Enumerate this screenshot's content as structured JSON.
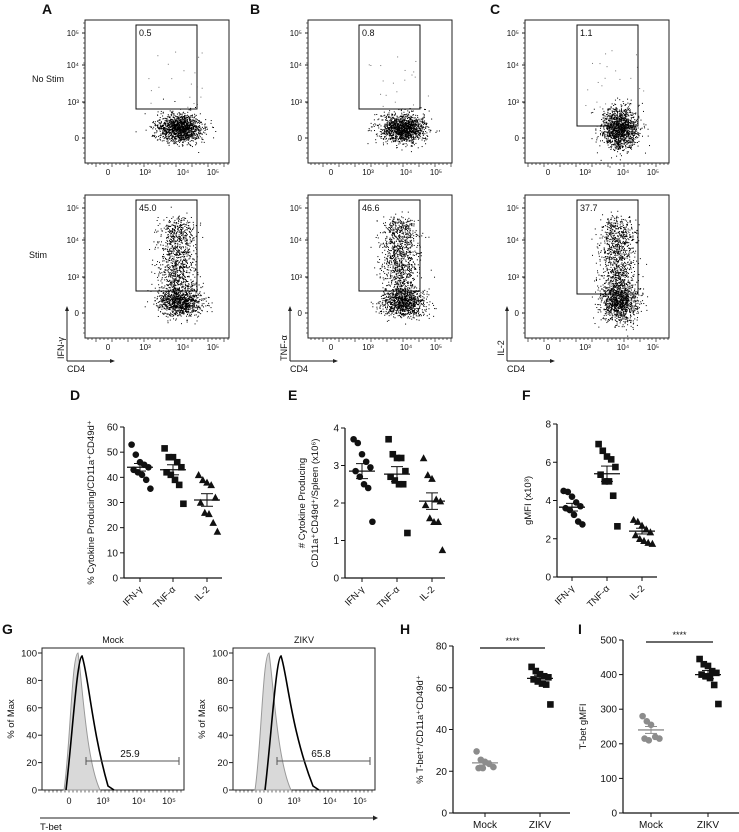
{
  "panels": {
    "A": {
      "letter": "A",
      "gate_no_stim": "0.5",
      "gate_stim": "45.0",
      "y_axis": "IFN-γ",
      "x_axis": "CD4"
    },
    "B": {
      "letter": "B",
      "gate_no_stim": "0.8",
      "gate_stim": "46.6",
      "y_axis": "TNF-α",
      "x_axis": "CD4"
    },
    "C": {
      "letter": "C",
      "gate_no_stim": "1.1",
      "gate_stim": "37.7",
      "y_axis": "IL-2",
      "x_axis": "CD4"
    },
    "D": {
      "letter": "D"
    },
    "E": {
      "letter": "E"
    },
    "F": {
      "letter": "F"
    },
    "G": {
      "letter": "G"
    },
    "H": {
      "letter": "H"
    },
    "I": {
      "letter": "I"
    }
  },
  "row_labels": {
    "no_stim": "No Stim",
    "stim": "Stim"
  },
  "flow_ticks": {
    "y": [
      "10⁵",
      "10⁴",
      "10³",
      "0"
    ],
    "x": [
      "0",
      "10³",
      "10⁴",
      "10⁵"
    ]
  },
  "histogram": {
    "titles": [
      "Mock",
      "ZIKV"
    ],
    "y_label": "% of Max",
    "y_ticks": [
      "100",
      "80",
      "60",
      "40",
      "20",
      "0"
    ],
    "x_ticks": [
      "0",
      "10³",
      "10⁴",
      "10⁵"
    ],
    "gates": [
      "25.9",
      "65.8"
    ],
    "x_axis": "T-bet"
  },
  "chart_data": [
    {
      "panel": "D",
      "type": "scatter",
      "title": "",
      "ylabel": "% Cytokine Producing/CD11a⁺CD49d⁺",
      "categories": [
        "IFN-γ",
        "TNF-α",
        "IL-2"
      ],
      "ylim": [
        0,
        60
      ],
      "yticks": [
        0,
        10,
        20,
        30,
        40,
        50,
        60
      ],
      "series": [
        {
          "name": "IFN-γ",
          "marker": "circle",
          "values": [
            53,
            49,
            46,
            45,
            44,
            43,
            42,
            41,
            39,
            35.5
          ],
          "mean": 44,
          "sem": 1.5
        },
        {
          "name": "TNF-α",
          "marker": "square",
          "values": [
            51.5,
            48,
            48,
            46,
            44,
            42,
            41,
            39,
            37,
            29.5
          ],
          "mean": 43,
          "sem": 2
        },
        {
          "name": "IL-2",
          "marker": "triangle",
          "values": [
            41,
            39,
            38,
            37,
            32,
            30,
            26,
            25.5,
            22,
            18.5
          ],
          "mean": 31,
          "sem": 2.5
        }
      ]
    },
    {
      "panel": "E",
      "type": "scatter",
      "ylabel": "# Cytokine Producing CD11a⁺CD49d⁺/Spleen (x10⁶)",
      "categories": [
        "IFN-γ",
        "TNF-α",
        "IL-2"
      ],
      "ylim": [
        0,
        4
      ],
      "yticks": [
        0,
        1,
        2,
        3,
        4
      ],
      "series": [
        {
          "name": "IFN-γ",
          "marker": "circle",
          "values": [
            3.7,
            3.6,
            3.3,
            3.1,
            2.95,
            2.85,
            2.7,
            2.5,
            2.4,
            1.5
          ],
          "mean": 2.85,
          "sem": 0.2
        },
        {
          "name": "TNF-α",
          "marker": "square",
          "values": [
            3.7,
            3.3,
            3.2,
            3.2,
            2.85,
            2.7,
            2.6,
            2.5,
            2.5,
            1.2
          ],
          "mean": 2.77,
          "sem": 0.2
        },
        {
          "name": "IL-2",
          "marker": "triangle",
          "values": [
            3.2,
            2.75,
            2.65,
            2.1,
            2.05,
            1.95,
            1.6,
            1.5,
            1.5,
            0.75
          ],
          "mean": 2.05,
          "sem": 0.22
        }
      ]
    },
    {
      "panel": "F",
      "type": "scatter",
      "ylabel": "gMFI (x10³)",
      "categories": [
        "IFN-γ",
        "TNF-α",
        "IL-2"
      ],
      "ylim": [
        0,
        8
      ],
      "yticks": [
        0,
        2,
        4,
        6,
        8
      ],
      "series": [
        {
          "name": "IFN-γ",
          "marker": "circle",
          "values": [
            4.5,
            4.45,
            4.2,
            3.9,
            3.7,
            3.6,
            3.5,
            3.25,
            2.9,
            2.75
          ],
          "mean": 3.65,
          "sem": 0.2
        },
        {
          "name": "TNF-α",
          "marker": "square",
          "values": [
            6.95,
            6.6,
            6.3,
            6.15,
            5.75,
            5.35,
            5.0,
            5.0,
            4.25,
            2.65
          ],
          "mean": 5.4,
          "sem": 0.4
        },
        {
          "name": "IL-2",
          "marker": "triangle",
          "values": [
            3.0,
            2.9,
            2.7,
            2.5,
            2.35,
            2.2,
            2.0,
            1.9,
            1.8,
            1.75
          ],
          "mean": 2.4,
          "sem": 0.15
        }
      ]
    },
    {
      "panel": "H",
      "type": "scatter",
      "ylabel": "% T-bet⁺/CD11a⁺CD49d⁺",
      "categories": [
        "Mock",
        "ZIKV"
      ],
      "ylim": [
        0,
        80
      ],
      "yticks": [
        0,
        20,
        40,
        60,
        80
      ],
      "significance": "****",
      "series": [
        {
          "name": "Mock",
          "marker": "circle",
          "color": "#8c8c8c",
          "values": [
            29.5,
            25.5,
            24.5,
            23.5,
            22,
            21.5,
            21.5
          ],
          "mean": 24,
          "sem": 1
        },
        {
          "name": "ZIKV",
          "marker": "square",
          "color": "#111111",
          "values": [
            70,
            68,
            66.5,
            65.5,
            65,
            64,
            63,
            62,
            61.5,
            52
          ],
          "mean": 64.5,
          "sem": 1.5
        }
      ]
    },
    {
      "panel": "I",
      "type": "scatter",
      "ylabel": "T-bet gMFI",
      "categories": [
        "Mock",
        "ZIKV"
      ],
      "ylim": [
        0,
        500
      ],
      "yticks": [
        0,
        100,
        200,
        300,
        400,
        500
      ],
      "significance": "****",
      "series": [
        {
          "name": "Mock",
          "marker": "circle",
          "color": "#8c8c8c",
          "values": [
            280,
            265,
            255,
            220,
            215,
            215,
            210
          ],
          "mean": 240,
          "sem": 10
        },
        {
          "name": "ZIKV",
          "marker": "square",
          "color": "#111111",
          "values": [
            445,
            430,
            425,
            410,
            405,
            400,
            395,
            390,
            370,
            315
          ],
          "mean": 400,
          "sem": 12
        }
      ]
    },
    {
      "panel": "G",
      "type": "area",
      "title": "T-bet histograms",
      "xlabel": "T-bet",
      "ylabel": "% of Max",
      "ylim": [
        0,
        100
      ],
      "series": [
        {
          "name": "Mock",
          "gate_percent": 25.9
        },
        {
          "name": "ZIKV",
          "gate_percent": 65.8
        }
      ]
    }
  ]
}
